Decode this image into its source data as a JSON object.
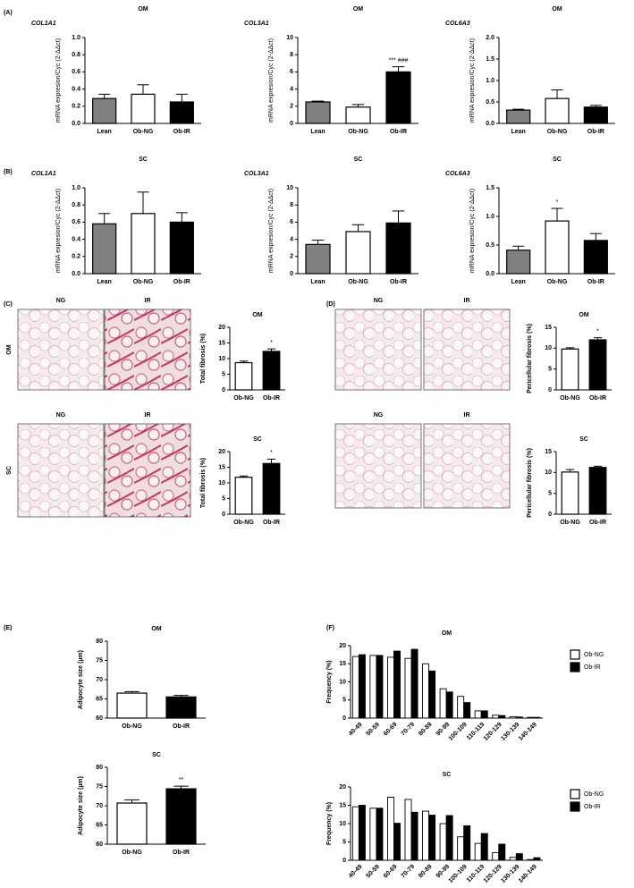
{
  "panel_labels": [
    "(A)",
    "(B)",
    "(C)",
    "(D)",
    "(E)",
    "(F)"
  ],
  "micrographs": {
    "C": [
      {
        "label": "OM",
        "columns": [
          "NG",
          "IR"
        ]
      },
      {
        "label": "SC",
        "columns": [
          "NG",
          "IR"
        ]
      }
    ],
    "D": [
      {
        "columns": [
          "NG",
          "IR"
        ]
      },
      {
        "columns": [
          "NG",
          "IR"
        ]
      }
    ]
  },
  "chart_data": [
    {
      "type": "bar",
      "title": "OM",
      "subtitle": "COL1A1",
      "ylabel": "mRNA expresion/Cyc (2-ΔΔct)",
      "categories": [
        "Lean",
        "Ob-NG",
        "Ob-IR"
      ],
      "values": [
        0.29,
        0.34,
        0.25
      ],
      "errors": [
        0.05,
        0.11,
        0.09
      ],
      "colors": [
        "#808080",
        "#ffffff",
        "#000000"
      ],
      "ylim": [
        0,
        1
      ],
      "yticks": [
        {
          "value": 0,
          "label": "0.0"
        },
        0.2,
        0.4,
        0.6,
        0.8,
        {
          "value": 1,
          "label": "1.0"
        }
      ]
    },
    {
      "type": "bar",
      "title": "OM",
      "subtitle": "COL3A1",
      "ylabel": "mRNA expresion/Cyc (2-ΔΔct)",
      "categories": [
        "Lean",
        "Ob-NG",
        "Ob-IR"
      ],
      "values": [
        2.5,
        1.9,
        6.0
      ],
      "errors": [
        0.1,
        0.3,
        0.6
      ],
      "colors": [
        "#808080",
        "#ffffff",
        "#000000"
      ],
      "annotations": [
        null,
        null,
        "*** ###"
      ],
      "ylim": [
        0,
        10
      ],
      "yticks": [
        0,
        2,
        4,
        6,
        8,
        10
      ]
    },
    {
      "type": "bar",
      "title": "OM",
      "subtitle": "COL6A3",
      "ylabel": "mRNA expresion/Cyc (2-ΔΔct)",
      "categories": [
        "Lean",
        "Ob-NG",
        "Ob-IR"
      ],
      "values": [
        0.31,
        0.58,
        0.38
      ],
      "errors": [
        0.02,
        0.2,
        0.04
      ],
      "colors": [
        "#808080",
        "#ffffff",
        "#000000"
      ],
      "ylim": [
        0,
        2
      ],
      "yticks": [
        {
          "value": 0,
          "label": "0.0"
        },
        0.5,
        {
          "value": 1,
          "label": "1.0"
        },
        1.5,
        {
          "value": 2,
          "label": "2.0"
        }
      ]
    },
    {
      "type": "bar",
      "title": "SC",
      "subtitle": "COL1A1",
      "ylabel": "mRNA expresion/Cyc (2-ΔΔct)",
      "categories": [
        "Lean",
        "Ob-NG",
        "Ob-IR"
      ],
      "values": [
        0.58,
        0.7,
        0.6
      ],
      "errors": [
        0.12,
        0.25,
        0.11
      ],
      "colors": [
        "#808080",
        "#ffffff",
        "#000000"
      ],
      "ylim": [
        0,
        1
      ],
      "yticks": [
        {
          "value": 0,
          "label": "0.0"
        },
        0.2,
        0.4,
        0.6,
        0.8,
        {
          "value": 1,
          "label": "1.0"
        }
      ]
    },
    {
      "type": "bar",
      "title": "SC",
      "subtitle": "COL3A1",
      "ylabel": "mRNA expresion/Cyc (2-ΔΔct)",
      "categories": [
        "Lean",
        "Ob-NG",
        "Ob-IR"
      ],
      "values": [
        3.4,
        4.9,
        5.9
      ],
      "errors": [
        0.5,
        0.8,
        1.4
      ],
      "colors": [
        "#808080",
        "#ffffff",
        "#000000"
      ],
      "ylim": [
        0,
        10
      ],
      "yticks": [
        0,
        2,
        4,
        6,
        8,
        10
      ]
    },
    {
      "type": "bar",
      "title": "SC",
      "subtitle": "COL6A3",
      "ylabel": "mRNA expresion/Cyc (2-ΔΔct)",
      "categories": [
        "Lean",
        "Ob-NG",
        "Ob-IR"
      ],
      "values": [
        0.41,
        0.92,
        0.58
      ],
      "errors": [
        0.07,
        0.22,
        0.12
      ],
      "colors": [
        "#808080",
        "#ffffff",
        "#000000"
      ],
      "annotations": [
        null,
        "*",
        null
      ],
      "ylim": [
        0,
        1.5
      ],
      "yticks": [
        {
          "value": 0,
          "label": "0.0"
        },
        0.5,
        {
          "value": 1,
          "label": "1.0"
        },
        1.5
      ]
    },
    {
      "type": "bar",
      "title": "OM",
      "ylabel": "Total fibrosis (%)",
      "categories": [
        "Ob-NG",
        "Ob-IR"
      ],
      "values": [
        8.7,
        12.3
      ],
      "errors": [
        0.5,
        0.8
      ],
      "colors": [
        "#ffffff",
        "#000000"
      ],
      "annotations": [
        null,
        "*"
      ],
      "ylim": [
        0,
        20
      ],
      "yticks": [
        0,
        5,
        10,
        15,
        20
      ]
    },
    {
      "type": "bar",
      "title": "SC",
      "ylabel": "Total fibrosis (%)",
      "categories": [
        "Ob-NG",
        "Ob-IR"
      ],
      "values": [
        11.8,
        16.2
      ],
      "errors": [
        0.4,
        1.4
      ],
      "colors": [
        "#ffffff",
        "#000000"
      ],
      "annotations": [
        null,
        "*"
      ],
      "ylim": [
        0,
        20
      ],
      "yticks": [
        0,
        5,
        10,
        15,
        20
      ]
    },
    {
      "type": "bar",
      "title": "OM",
      "ylabel": "Pericellular fibrosis (%)",
      "categories": [
        "Ob-NG",
        "Ob-IR"
      ],
      "values": [
        9.8,
        12.0
      ],
      "errors": [
        0.3,
        0.5
      ],
      "colors": [
        "#ffffff",
        "#000000"
      ],
      "annotations": [
        null,
        "*"
      ],
      "ylim": [
        0,
        15
      ],
      "yticks": [
        0,
        5,
        10,
        15
      ]
    },
    {
      "type": "bar",
      "title": "SC",
      "ylabel": "Pericellular fibrosis (%)",
      "categories": [
        "Ob-NG",
        "Ob-IR"
      ],
      "values": [
        10.1,
        11.2
      ],
      "errors": [
        0.6,
        0.3
      ],
      "colors": [
        "#ffffff",
        "#000000"
      ],
      "ylim": [
        0,
        15
      ],
      "yticks": [
        0,
        5,
        10,
        15
      ]
    },
    {
      "type": "bar",
      "title": "OM",
      "ylabel": "Adipocyte size (µm)",
      "categories": [
        "Ob-NG",
        "Ob-IR"
      ],
      "values": [
        66.5,
        65.5
      ],
      "errors": [
        0.4,
        0.4
      ],
      "colors": [
        "#ffffff",
        "#000000"
      ],
      "ylim": [
        60,
        80
      ],
      "yticks": [
        60,
        65,
        70,
        75,
        80
      ]
    },
    {
      "type": "bar",
      "title": "SC",
      "ylabel": "Adipocyte size (µm)",
      "categories": [
        "Ob-NG",
        "Ob-IR"
      ],
      "values": [
        70.7,
        74.4
      ],
      "errors": [
        0.8,
        0.7
      ],
      "colors": [
        "#ffffff",
        "#000000"
      ],
      "annotations": [
        null,
        "**"
      ],
      "ylim": [
        60,
        80
      ],
      "yticks": [
        60,
        65,
        70,
        75,
        80
      ]
    },
    {
      "type": "grouped_bar",
      "title": "OM",
      "ylabel": "Frequency (%)",
      "categories": [
        "40-49",
        "50-59",
        "60-69",
        "70-79",
        "80-89",
        "90-99",
        "100-109",
        "110-119",
        "120-129",
        "130-139",
        "140-149"
      ],
      "series": [
        {
          "name": "Ob-NG",
          "color": "#ffffff",
          "values": [
            17,
            17.3,
            16.8,
            16.5,
            15,
            8.1,
            6,
            2,
            0.8,
            0.4,
            0.2
          ]
        },
        {
          "name": "Ob-IR",
          "color": "#000000",
          "values": [
            17.5,
            17.3,
            18.5,
            19,
            13,
            7.2,
            4.3,
            2,
            0.7,
            0.3,
            0.2
          ]
        }
      ],
      "ylim": [
        0,
        20
      ],
      "yticks": [
        0,
        5,
        10,
        15,
        20
      ]
    },
    {
      "type": "grouped_bar",
      "title": "SC",
      "ylabel": "Frequency (%)",
      "categories": [
        "40-49",
        "50-59",
        "60-69",
        "70-79",
        "80-89",
        "90-99",
        "100-109",
        "110-119",
        "120-129",
        "130-139",
        "140-149"
      ],
      "series": [
        {
          "name": "Ob-NG",
          "color": "#ffffff",
          "values": [
            14.6,
            14.2,
            17.2,
            16.6,
            13.4,
            10,
            6.4,
            4.6,
            2.1,
            0.8,
            0.2
          ]
        },
        {
          "name": "Ob-IR",
          "color": "#000000",
          "values": [
            15,
            14.2,
            10.1,
            13.1,
            12.3,
            12.2,
            9.4,
            7.3,
            4.4,
            1.8,
            0.7
          ]
        }
      ],
      "ylim": [
        0,
        20
      ],
      "yticks": [
        0,
        5,
        10,
        15,
        20
      ]
    }
  ]
}
